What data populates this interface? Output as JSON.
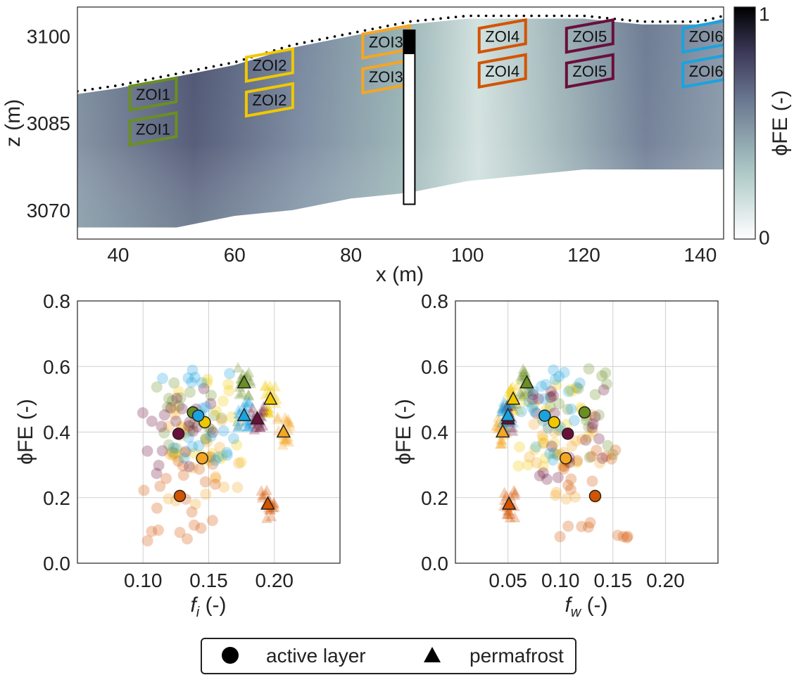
{
  "chart_data": [
    {
      "type": "heatmap",
      "xlabel": "x (m)",
      "ylabel": "z (m)",
      "xlim": [
        33,
        144
      ],
      "ylim": [
        3065,
        3105
      ],
      "xticks": [
        "40",
        "60",
        "80",
        "100",
        "120",
        "140"
      ],
      "yticks": [
        "3070",
        "3085",
        "3100"
      ],
      "colorbar_label": "ϕFE (-)",
      "colorbar_ticks": [
        "0",
        "1"
      ],
      "surface": [
        [
          33,
          3090
        ],
        [
          40,
          3091
        ],
        [
          50,
          3093
        ],
        [
          60,
          3095
        ],
        [
          70,
          3098
        ],
        [
          80,
          3100
        ],
        [
          90,
          3102
        ],
        [
          100,
          3103
        ],
        [
          110,
          3103
        ],
        [
          120,
          3103
        ],
        [
          130,
          3102
        ],
        [
          140,
          3102
        ],
        [
          144,
          3103
        ]
      ],
      "bottom": [
        [
          33,
          3067
        ],
        [
          50,
          3067
        ],
        [
          60,
          3069
        ],
        [
          70,
          3070
        ],
        [
          80,
          3072
        ],
        [
          90,
          3073
        ],
        [
          100,
          3075
        ],
        [
          110,
          3076
        ],
        [
          120,
          3077
        ],
        [
          130,
          3077
        ],
        [
          144,
          3077
        ]
      ],
      "borehole": {
        "x": 90,
        "z_top": 3101,
        "z_bottom": 3071
      },
      "zones": [
        {
          "label": "ZOI1",
          "x": 46,
          "z_upper": 3090,
          "z_lower": 3084,
          "color": "#6b8e23"
        },
        {
          "label": "ZOI2",
          "x": 66,
          "z_upper": 3095,
          "z_lower": 3089,
          "color": "#f0c800"
        },
        {
          "label": "ZOI3",
          "x": 86,
          "z_upper": 3099,
          "z_lower": 3093,
          "color": "#f5a623"
        },
        {
          "label": "ZOI4",
          "x": 106,
          "z_upper": 3100,
          "z_lower": 3094,
          "color": "#d35400"
        },
        {
          "label": "ZOI5",
          "x": 121,
          "z_upper": 3100,
          "z_lower": 3094,
          "color": "#6a0f3a"
        },
        {
          "label": "ZOI6",
          "x": 141,
          "z_upper": 3100,
          "z_lower": 3094,
          "color": "#1aa3e0"
        }
      ]
    },
    {
      "type": "scatter",
      "xlabel": "f_i (-)",
      "ylabel": "ϕFE (-)",
      "xlim": [
        0.05,
        0.25
      ],
      "ylim": [
        0.0,
        0.8
      ],
      "xticks": [
        "0.10",
        "0.15",
        "0.20"
      ],
      "yticks": [
        "0.0",
        "0.2",
        "0.4",
        "0.6",
        "0.8"
      ],
      "mean_points": [
        {
          "zone": "ZOI1",
          "layer": "active layer",
          "x": 0.138,
          "y": 0.46
        },
        {
          "zone": "ZOI1",
          "layer": "permafrost",
          "x": 0.177,
          "y": 0.55
        },
        {
          "zone": "ZOI2",
          "layer": "active layer",
          "x": 0.147,
          "y": 0.43
        },
        {
          "zone": "ZOI2",
          "layer": "permafrost",
          "x": 0.197,
          "y": 0.5
        },
        {
          "zone": "ZOI3",
          "layer": "active layer",
          "x": 0.145,
          "y": 0.32
        },
        {
          "zone": "ZOI3",
          "layer": "permafrost",
          "x": 0.207,
          "y": 0.4
        },
        {
          "zone": "ZOI4",
          "layer": "active layer",
          "x": 0.128,
          "y": 0.205
        },
        {
          "zone": "ZOI4",
          "layer": "permafrost",
          "x": 0.195,
          "y": 0.18
        },
        {
          "zone": "ZOI5",
          "layer": "active layer",
          "x": 0.127,
          "y": 0.395
        },
        {
          "zone": "ZOI5",
          "layer": "permafrost",
          "x": 0.187,
          "y": 0.44
        },
        {
          "zone": "ZOI6",
          "layer": "active layer",
          "x": 0.142,
          "y": 0.45
        },
        {
          "zone": "ZOI6",
          "layer": "permafrost",
          "x": 0.177,
          "y": 0.45
        }
      ]
    },
    {
      "type": "scatter",
      "xlabel": "f_w (-)",
      "ylabel": "ϕFE (-)",
      "xlim": [
        0.0,
        0.25
      ],
      "ylim": [
        0.0,
        0.8
      ],
      "xticks": [
        "0.05",
        "0.10",
        "0.15",
        "0.20"
      ],
      "yticks": [
        "0.0",
        "0.2",
        "0.4",
        "0.6",
        "0.8"
      ],
      "mean_points": [
        {
          "zone": "ZOI1",
          "layer": "active layer",
          "x": 0.123,
          "y": 0.46
        },
        {
          "zone": "ZOI1",
          "layer": "permafrost",
          "x": 0.068,
          "y": 0.55
        },
        {
          "zone": "ZOI2",
          "layer": "active layer",
          "x": 0.094,
          "y": 0.43
        },
        {
          "zone": "ZOI2",
          "layer": "permafrost",
          "x": 0.055,
          "y": 0.5
        },
        {
          "zone": "ZOI3",
          "layer": "active layer",
          "x": 0.105,
          "y": 0.32
        },
        {
          "zone": "ZOI3",
          "layer": "permafrost",
          "x": 0.045,
          "y": 0.4
        },
        {
          "zone": "ZOI4",
          "layer": "active layer",
          "x": 0.133,
          "y": 0.205
        },
        {
          "zone": "ZOI4",
          "layer": "permafrost",
          "x": 0.051,
          "y": 0.18
        },
        {
          "zone": "ZOI5",
          "layer": "active layer",
          "x": 0.107,
          "y": 0.395
        },
        {
          "zone": "ZOI5",
          "layer": "permafrost",
          "x": 0.05,
          "y": 0.44
        },
        {
          "zone": "ZOI6",
          "layer": "active layer",
          "x": 0.085,
          "y": 0.45
        },
        {
          "zone": "ZOI6",
          "layer": "permafrost",
          "x": 0.05,
          "y": 0.45
        }
      ]
    }
  ],
  "legend": {
    "items": [
      {
        "marker": "circle",
        "label": "active layer"
      },
      {
        "marker": "triangle",
        "label": "permafrost"
      }
    ]
  }
}
